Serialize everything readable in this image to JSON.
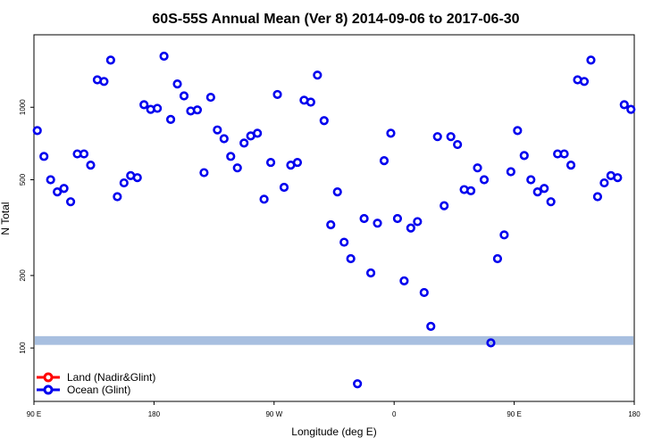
{
  "chart_data": {
    "type": "scatter",
    "title": "60S-55S Annual Mean (Ver 8)   2014-09-06 to 2017-06-30",
    "xlabel": "Longitude (deg E)",
    "ylabel": "N Total",
    "x_ticks": [
      {
        "pos": 90,
        "label": "90 E"
      },
      {
        "pos": 180,
        "label": "180"
      },
      {
        "pos": 270,
        "label": "90 W"
      },
      {
        "pos": 360,
        "label": "0"
      },
      {
        "pos": 450,
        "label": "90 E"
      },
      {
        "pos": 540,
        "label": "180"
      }
    ],
    "y_ticks": [
      100,
      200,
      500,
      1000
    ],
    "xlim": [
      90,
      540
    ],
    "ylim": [
      60,
      2000
    ],
    "y_scale": "log",
    "grid": false,
    "legend_position": "bottom-left",
    "land_band": {
      "y_min": 103,
      "y_max": 112,
      "color": "#a8bfe0"
    },
    "series": [
      {
        "name": "Land (Nadir&Glint)",
        "color": "#ff0000",
        "points": []
      },
      {
        "name": "Ocean (Glint)",
        "color": "#0000ee",
        "points": [
          [
            92.5,
            800
          ],
          [
            97.5,
            625
          ],
          [
            102.5,
            500
          ],
          [
            107.5,
            445
          ],
          [
            112.5,
            460
          ],
          [
            117.5,
            405
          ],
          [
            122.5,
            640
          ],
          [
            127.5,
            640
          ],
          [
            132.5,
            575
          ],
          [
            137.5,
            1300
          ],
          [
            142.5,
            1280
          ],
          [
            147.5,
            1570
          ],
          [
            152.5,
            425
          ],
          [
            157.5,
            485
          ],
          [
            162.5,
            520
          ],
          [
            167.5,
            510
          ],
          [
            172.5,
            1025
          ],
          [
            177.5,
            980
          ],
          [
            182.5,
            990
          ],
          [
            187.5,
            1630
          ],
          [
            192.5,
            890
          ],
          [
            197.5,
            1250
          ],
          [
            202.5,
            1115
          ],
          [
            207.5,
            965
          ],
          [
            212.5,
            975
          ],
          [
            217.5,
            535
          ],
          [
            222.5,
            1100
          ],
          [
            227.5,
            805
          ],
          [
            232.5,
            740
          ],
          [
            237.5,
            625
          ],
          [
            242.5,
            560
          ],
          [
            247.5,
            710
          ],
          [
            252.5,
            760
          ],
          [
            257.5,
            780
          ],
          [
            262.5,
            415
          ],
          [
            267.5,
            590
          ],
          [
            272.5,
            1130
          ],
          [
            277.5,
            465
          ],
          [
            282.5,
            575
          ],
          [
            287.5,
            590
          ],
          [
            292.5,
            1070
          ],
          [
            297.5,
            1050
          ],
          [
            302.5,
            1360
          ],
          [
            307.5,
            880
          ],
          [
            312.5,
            325
          ],
          [
            317.5,
            445
          ],
          [
            322.5,
            275
          ],
          [
            327.5,
            235
          ],
          [
            332.5,
            71
          ],
          [
            337.5,
            345
          ],
          [
            342.5,
            205
          ],
          [
            347.5,
            330
          ],
          [
            352.5,
            600
          ],
          [
            357.5,
            780
          ],
          [
            362.5,
            345
          ],
          [
            367.5,
            190
          ],
          [
            372.5,
            315
          ],
          [
            377.5,
            335
          ],
          [
            382.5,
            170
          ],
          [
            387.5,
            123
          ],
          [
            392.5,
            755
          ],
          [
            397.5,
            390
          ],
          [
            402.5,
            755
          ],
          [
            407.5,
            700
          ],
          [
            412.5,
            455
          ],
          [
            417.5,
            450
          ],
          [
            422.5,
            560
          ],
          [
            427.5,
            500
          ],
          [
            432.5,
            105
          ],
          [
            437.5,
            235
          ],
          [
            442.5,
            295
          ],
          [
            447.5,
            540
          ],
          [
            452.5,
            800
          ],
          [
            457.5,
            630
          ],
          [
            462.5,
            500
          ],
          [
            467.5,
            445
          ],
          [
            472.5,
            460
          ],
          [
            477.5,
            405
          ],
          [
            482.5,
            640
          ],
          [
            487.5,
            640
          ],
          [
            492.5,
            575
          ],
          [
            497.5,
            1300
          ],
          [
            502.5,
            1280
          ],
          [
            507.5,
            1570
          ],
          [
            512.5,
            425
          ],
          [
            517.5,
            485
          ],
          [
            522.5,
            520
          ],
          [
            527.5,
            510
          ],
          [
            532.5,
            1025
          ],
          [
            537.5,
            980
          ]
        ]
      }
    ]
  }
}
